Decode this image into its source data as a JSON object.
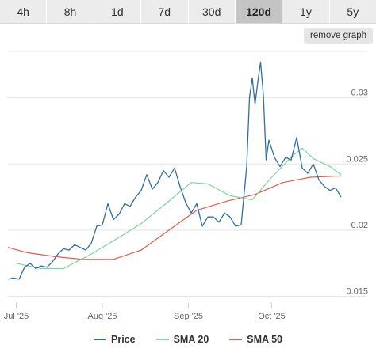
{
  "tabs": [
    {
      "label": "4h",
      "active": false
    },
    {
      "label": "8h",
      "active": false
    },
    {
      "label": "1d",
      "active": false
    },
    {
      "label": "7d",
      "active": false
    },
    {
      "label": "30d",
      "active": false
    },
    {
      "label": "120d",
      "active": true
    },
    {
      "label": "1y",
      "active": false
    },
    {
      "label": "5y",
      "active": false
    }
  ],
  "remove_graph_label": "remove graph",
  "legend": [
    {
      "name": "Price",
      "color": "#2f6fa5"
    },
    {
      "name": "SMA 20",
      "color": "#7ed59a"
    },
    {
      "name": "SMA 50",
      "color": "#e5584b"
    }
  ],
  "chart_data": {
    "type": "line",
    "xaxis": {
      "type": "date",
      "range": [
        "2025-06-28",
        "2025-10-26"
      ],
      "ticks": [
        {
          "label": "Jul '25",
          "date": "2025-07-01"
        },
        {
          "label": "Aug '25",
          "date": "2025-08-01"
        },
        {
          "label": "Sep '25",
          "date": "2025-09-01"
        },
        {
          "label": "Oct '25",
          "date": "2025-10-01"
        }
      ]
    },
    "yaxis": {
      "range": [
        0.0145,
        0.0335
      ],
      "ticks": [
        0.015,
        0.02,
        0.025,
        0.03
      ],
      "position": "right",
      "grid": true
    },
    "legend_position": "bottom",
    "series": [
      {
        "name": "Price",
        "color": "#2f6fa5",
        "points": [
          [
            "2025-06-28",
            0.0163
          ],
          [
            "2025-06-30",
            0.0164
          ],
          [
            "2025-07-02",
            0.0163
          ],
          [
            "2025-07-04",
            0.0172
          ],
          [
            "2025-07-06",
            0.0175
          ],
          [
            "2025-07-08",
            0.0171
          ],
          [
            "2025-07-10",
            0.0173
          ],
          [
            "2025-07-12",
            0.0172
          ],
          [
            "2025-07-14",
            0.0176
          ],
          [
            "2025-07-16",
            0.0182
          ],
          [
            "2025-07-18",
            0.0186
          ],
          [
            "2025-07-20",
            0.0185
          ],
          [
            "2025-07-22",
            0.0189
          ],
          [
            "2025-07-24",
            0.0187
          ],
          [
            "2025-07-26",
            0.0185
          ],
          [
            "2025-07-28",
            0.019
          ],
          [
            "2025-07-30",
            0.0203
          ],
          [
            "2025-08-01",
            0.0204
          ],
          [
            "2025-08-03",
            0.022
          ],
          [
            "2025-08-05",
            0.0208
          ],
          [
            "2025-08-07",
            0.0212
          ],
          [
            "2025-08-09",
            0.022
          ],
          [
            "2025-08-11",
            0.0218
          ],
          [
            "2025-08-13",
            0.0225
          ],
          [
            "2025-08-15",
            0.023
          ],
          [
            "2025-08-17",
            0.0242
          ],
          [
            "2025-08-19",
            0.0231
          ],
          [
            "2025-08-21",
            0.0236
          ],
          [
            "2025-08-23",
            0.0245
          ],
          [
            "2025-08-25",
            0.024
          ],
          [
            "2025-08-27",
            0.0247
          ],
          [
            "2025-08-29",
            0.0233
          ],
          [
            "2025-08-31",
            0.0221
          ],
          [
            "2025-09-02",
            0.0213
          ],
          [
            "2025-09-04",
            0.022
          ],
          [
            "2025-09-06",
            0.0203
          ],
          [
            "2025-09-08",
            0.021
          ],
          [
            "2025-09-10",
            0.021
          ],
          [
            "2025-09-12",
            0.0206
          ],
          [
            "2025-09-14",
            0.0213
          ],
          [
            "2025-09-16",
            0.021
          ],
          [
            "2025-09-18",
            0.0203
          ],
          [
            "2025-09-20",
            0.0204
          ],
          [
            "2025-09-22",
            0.0248
          ],
          [
            "2025-09-23",
            0.03
          ],
          [
            "2025-09-24",
            0.0315
          ],
          [
            "2025-09-25",
            0.0295
          ],
          [
            "2025-09-26",
            0.0312
          ],
          [
            "2025-09-27",
            0.0327
          ],
          [
            "2025-09-28",
            0.0302
          ],
          [
            "2025-09-29",
            0.0253
          ],
          [
            "2025-09-30",
            0.0268
          ],
          [
            "2025-10-02",
            0.0255
          ],
          [
            "2025-10-04",
            0.0248
          ],
          [
            "2025-10-06",
            0.0255
          ],
          [
            "2025-10-08",
            0.0253
          ],
          [
            "2025-10-10",
            0.027
          ],
          [
            "2025-10-12",
            0.0247
          ],
          [
            "2025-10-14",
            0.0243
          ],
          [
            "2025-10-16",
            0.025
          ],
          [
            "2025-10-18",
            0.0238
          ],
          [
            "2025-10-20",
            0.0233
          ],
          [
            "2025-10-22",
            0.023
          ],
          [
            "2025-10-24",
            0.0232
          ],
          [
            "2025-10-26",
            0.0225
          ]
        ]
      },
      {
        "name": "SMA 20",
        "color": "#7ed59a",
        "points": [
          [
            "2025-07-01",
            0.0175
          ],
          [
            "2025-07-10",
            0.0171
          ],
          [
            "2025-07-18",
            0.0171
          ],
          [
            "2025-07-28",
            0.0182
          ],
          [
            "2025-08-05",
            0.0192
          ],
          [
            "2025-08-15",
            0.0205
          ],
          [
            "2025-08-25",
            0.0222
          ],
          [
            "2025-09-02",
            0.0236
          ],
          [
            "2025-09-08",
            0.0235
          ],
          [
            "2025-09-16",
            0.0226
          ],
          [
            "2025-09-24",
            0.0223
          ],
          [
            "2025-10-01",
            0.024
          ],
          [
            "2025-10-08",
            0.0255
          ],
          [
            "2025-10-12",
            0.0262
          ],
          [
            "2025-10-16",
            0.0254
          ],
          [
            "2025-10-22",
            0.0248
          ],
          [
            "2025-10-26",
            0.0242
          ]
        ]
      },
      {
        "name": "SMA 50",
        "color": "#e5584b",
        "points": [
          [
            "2025-06-28",
            0.0187
          ],
          [
            "2025-07-05",
            0.0183
          ],
          [
            "2025-07-15",
            0.018
          ],
          [
            "2025-07-25",
            0.0178
          ],
          [
            "2025-08-05",
            0.0178
          ],
          [
            "2025-08-15",
            0.0185
          ],
          [
            "2025-08-25",
            0.02
          ],
          [
            "2025-09-04",
            0.0215
          ],
          [
            "2025-09-15",
            0.0222
          ],
          [
            "2025-09-25",
            0.0227
          ],
          [
            "2025-10-05",
            0.0236
          ],
          [
            "2025-10-15",
            0.024
          ],
          [
            "2025-10-26",
            0.0241
          ]
        ]
      }
    ]
  }
}
